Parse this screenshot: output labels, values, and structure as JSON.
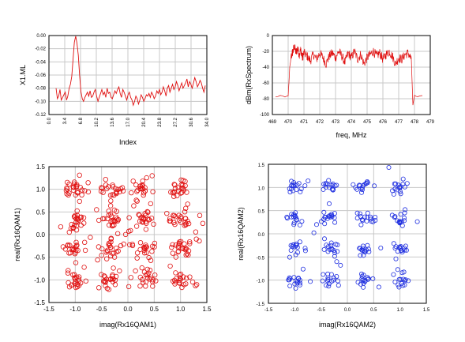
{
  "colors": {
    "red": "#e01010",
    "blue": "#1e2ee0",
    "grid": "#c8c8c8",
    "frame": "#000000"
  },
  "chart_data": [
    {
      "type": "line",
      "xlabel": "Index",
      "ylabel": "X1.ML",
      "xlim": [
        0,
        34
      ],
      "ylim": [
        -0.12,
        0.0
      ],
      "xticks": [
        0,
        34
      ],
      "ytick_labels": [
        "0.00",
        "-0.02",
        "-0.04",
        "-0.06",
        "-0.08",
        "-0.10",
        "-0.12"
      ],
      "grid": true,
      "series": [
        {
          "color": "red",
          "values": [
            -0.08,
            -0.096,
            -0.092,
            -0.082,
            -0.098,
            -0.094,
            -0.09,
            -0.086,
            -0.098,
            -0.092,
            -0.08,
            -0.074,
            -0.062,
            -0.035,
            -0.01,
            -0.001,
            -0.012,
            -0.03,
            -0.06,
            -0.085,
            -0.096,
            -0.1,
            -0.094,
            -0.09,
            -0.086,
            -0.092,
            -0.084,
            -0.094,
            -0.092,
            -0.086,
            -0.082,
            -0.092,
            -0.1,
            -0.094,
            -0.088,
            -0.082,
            -0.09,
            -0.086,
            -0.094,
            -0.08,
            -0.088,
            -0.086,
            -0.094,
            -0.096,
            -0.09,
            -0.084,
            -0.088,
            -0.082,
            -0.078,
            -0.088,
            -0.094,
            -0.082,
            -0.086,
            -0.092,
            -0.098,
            -0.09,
            -0.086,
            -0.094,
            -0.098,
            -0.106,
            -0.1,
            -0.092,
            -0.096,
            -0.104,
            -0.098,
            -0.09,
            -0.094,
            -0.1,
            -0.096,
            -0.09,
            -0.092,
            -0.088,
            -0.094,
            -0.086,
            -0.09,
            -0.096,
            -0.092,
            -0.084,
            -0.088,
            -0.082,
            -0.09,
            -0.086,
            -0.078,
            -0.084,
            -0.092,
            -0.08,
            -0.076,
            -0.086,
            -0.08,
            -0.074,
            -0.082,
            -0.078,
            -0.07,
            -0.076,
            -0.084,
            -0.078,
            -0.072,
            -0.08,
            -0.076,
            -0.072,
            -0.066,
            -0.078,
            -0.07,
            -0.074,
            -0.08,
            -0.072,
            -0.064,
            -0.07,
            -0.078,
            -0.074,
            -0.068,
            -0.072,
            -0.08,
            -0.086,
            -0.076
          ]
        }
      ]
    },
    {
      "type": "line",
      "xlabel": "freq, MHz",
      "ylabel": "dBm(RxSpectrum)",
      "xlim": [
        469,
        479
      ],
      "ylim": [
        -100,
        0
      ],
      "xtick_labels": [
        "469",
        "470",
        "471",
        "472",
        "473",
        "474",
        "475",
        "476",
        "477",
        "478",
        "479"
      ],
      "ytick_labels": [
        "0",
        "-20",
        "-40",
        "-60",
        "-80",
        "-100"
      ],
      "grid": true,
      "series": [
        {
          "color": "red",
          "x": [
            469.2,
            469.5,
            469.8,
            470.0,
            470.05,
            470.1,
            470.2,
            470.3,
            470.4,
            470.5,
            470.6,
            470.7,
            470.8,
            470.9,
            471.0,
            471.2,
            471.4,
            471.6,
            471.8,
            472.0,
            472.2,
            472.4,
            472.6,
            472.8,
            473.0,
            473.2,
            473.4,
            473.6,
            473.8,
            474.0,
            474.2,
            474.4,
            474.6,
            474.8,
            475.0,
            475.2,
            475.4,
            475.6,
            475.8,
            476.0,
            476.2,
            476.4,
            476.6,
            476.8,
            477.0,
            477.2,
            477.4,
            477.6,
            477.8,
            477.9,
            478.0,
            478.2,
            478.5
          ],
          "values": [
            -78,
            -76,
            -78,
            -76,
            -60,
            -40,
            -26,
            -20,
            -14,
            -22,
            -16,
            -24,
            -18,
            -28,
            -22,
            -26,
            -32,
            -24,
            -30,
            -22,
            -28,
            -36,
            -26,
            -22,
            -28,
            -20,
            -26,
            -34,
            -22,
            -28,
            -20,
            -30,
            -24,
            -36,
            -28,
            -24,
            -20,
            -26,
            -22,
            -30,
            -24,
            -20,
            -26,
            -36,
            -28,
            -30,
            -24,
            -22,
            -30,
            -88,
            -76,
            -78,
            -76
          ]
        }
      ]
    },
    {
      "type": "scatter",
      "xlabel": "imag(Rx16QAM1)",
      "ylabel": "real(Rx16QAM1)",
      "xlim": [
        -1.5,
        1.5
      ],
      "ylim": [
        -1.5,
        1.5
      ],
      "tick_labels": [
        "-1.5",
        "-1.0",
        "-0.5",
        "0.0",
        "0.5",
        "1.0",
        "1.5"
      ],
      "grid": true,
      "constellation": [
        -1.0,
        -0.33,
        0.33,
        1.0
      ],
      "spread": 0.11,
      "outlier_count": 55,
      "points_per_symbol": 22,
      "series": [
        {
          "color": "red",
          "marker": "circle"
        }
      ]
    },
    {
      "type": "scatter",
      "xlabel": "imag(Rx16QAM2)",
      "ylabel": "real(Rx16QAM2)",
      "xlim": [
        -1.5,
        1.5
      ],
      "ylim": [
        -1.5,
        1.5
      ],
      "tick_labels": [
        "-1.5",
        "-1.0",
        "-0.5",
        "0.0",
        "0.5",
        "1.0",
        "1.5"
      ],
      "grid": true,
      "constellation": [
        -1.0,
        -0.33,
        0.33,
        1.0
      ],
      "spread": 0.085,
      "outlier_count": 14,
      "points_per_symbol": 16,
      "series": [
        {
          "color": "blue",
          "marker": "circle"
        }
      ]
    }
  ]
}
